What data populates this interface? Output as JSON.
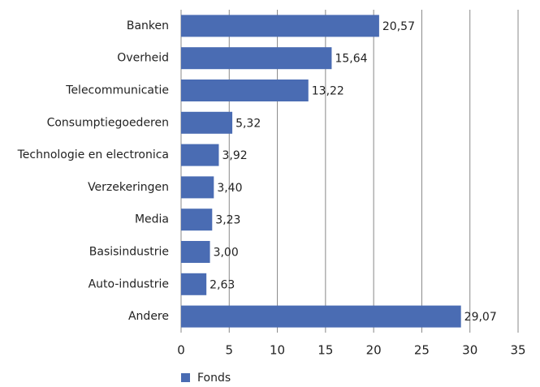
{
  "chart_data": {
    "type": "bar",
    "orientation": "horizontal",
    "categories": [
      "Banken",
      "Overheid",
      "Telecommunicatie",
      "Consumptiegoederen",
      "Technologie en electronica",
      "Verzekeringen",
      "Media",
      "Basisindustrie",
      "Auto-industrie",
      "Andere"
    ],
    "series": [
      {
        "name": "Fonds",
        "color": "#4a6cb3",
        "values": [
          20.57,
          15.64,
          13.22,
          5.32,
          3.92,
          3.4,
          3.23,
          3.0,
          2.63,
          29.07
        ],
        "value_labels": [
          "20,57",
          "15,64",
          "13,22",
          "5,32",
          "3,92",
          "3,40",
          "3,23",
          "3,00",
          "2,63",
          "29,07"
        ]
      }
    ],
    "xlim": [
      0,
      35
    ],
    "xticks": [
      0,
      5,
      10,
      15,
      20,
      25,
      30,
      35
    ],
    "grid": true,
    "legend": "bottom-left"
  }
}
